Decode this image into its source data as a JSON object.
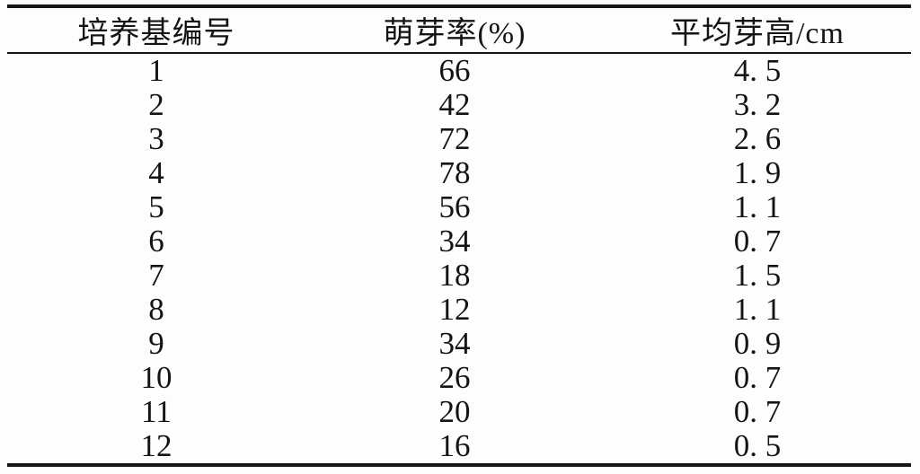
{
  "colors": {
    "background": "#fdfdfd",
    "rule": "#161616",
    "text": "#141414"
  },
  "table": {
    "headers": [
      "培养基编号",
      "萌芽率(%)",
      "平均芽高/cm"
    ],
    "rows": [
      [
        "1",
        "66",
        "4. 5"
      ],
      [
        "2",
        "42",
        "3. 2"
      ],
      [
        "3",
        "72",
        "2. 6"
      ],
      [
        "4",
        "78",
        "1. 9"
      ],
      [
        "5",
        "56",
        "1. 1"
      ],
      [
        "6",
        "34",
        "0. 7"
      ],
      [
        "7",
        "18",
        "1. 5"
      ],
      [
        "8",
        "12",
        "1. 1"
      ],
      [
        "9",
        "34",
        "0. 9"
      ],
      [
        "10",
        "26",
        "0. 7"
      ],
      [
        "11",
        "20",
        "0. 7"
      ],
      [
        "12",
        "16",
        "0. 5"
      ]
    ]
  }
}
